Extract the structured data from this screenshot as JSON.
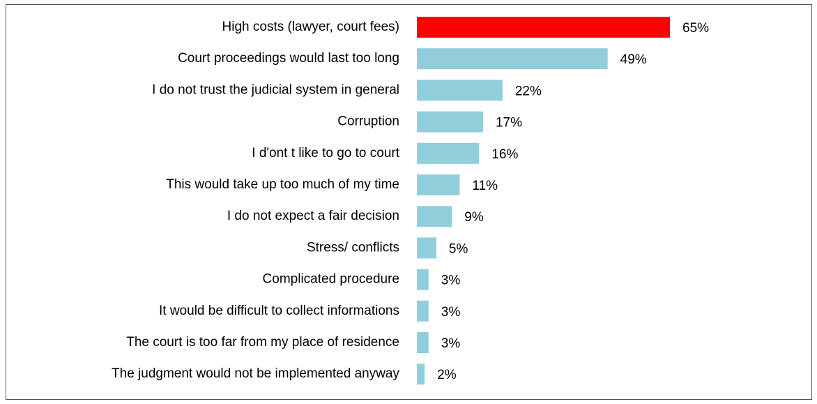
{
  "chart_data": {
    "type": "hbar",
    "categories": [
      "High costs (lawyer, court fees)",
      "Court proceedings would last too long",
      "I do not trust the judicial system in general",
      "Corruption",
      "I d'ont t like to go to court",
      "This would take up too much of my time",
      "I do not expect a fair decision",
      "Stress/ conflicts",
      "Complicated procedure",
      "It would be difficult  to collect informations",
      "The court is too far from my place of residence",
      "The judgment would not be implemented anyway"
    ],
    "values": [
      65,
      49,
      22,
      17,
      16,
      11,
      9,
      5,
      3,
      3,
      3,
      2
    ],
    "value_labels": [
      "65%",
      "49%",
      "22%",
      "17%",
      "16%",
      "11%",
      "9%",
      "5%",
      "3%",
      "3%",
      "3%",
      "2%"
    ],
    "colors": [
      "#ff0000",
      "#92cddc",
      "#92cddc",
      "#92cddc",
      "#92cddc",
      "#92cddc",
      "#92cddc",
      "#92cddc",
      "#92cddc",
      "#92cddc",
      "#92cddc",
      "#92cddc"
    ]
  }
}
